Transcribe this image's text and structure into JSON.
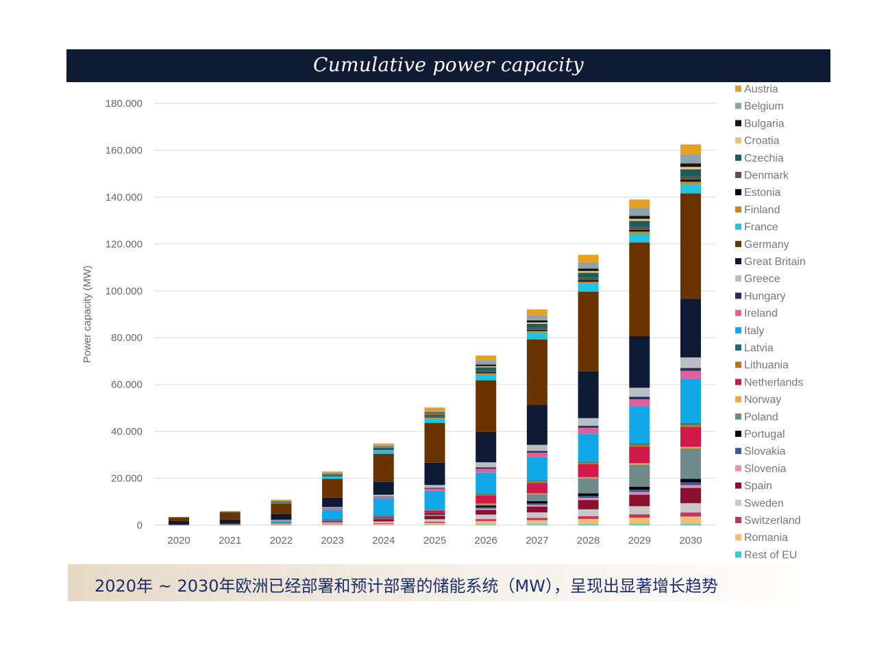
{
  "caption": "2020年 ~ 2030年欧洲已经部署和预计部署的储能系统（MW），呈现出显著增长趋势",
  "chart_data": {
    "type": "bar",
    "stacked": true,
    "title": "Cumulative power capacity",
    "xlabel": "",
    "ylabel": "Power capacity (MW)",
    "ylim": [
      0,
      180000
    ],
    "yticks": [
      0,
      20000,
      40000,
      60000,
      80000,
      100000,
      120000,
      140000,
      160000,
      180000
    ],
    "ytick_labels": [
      "0",
      "20.000",
      "40.000",
      "60.000",
      "80.000",
      "100.000",
      "120.000",
      "140.000",
      "160.000",
      "180.000"
    ],
    "grid": true,
    "legend_position": "right",
    "categories": [
      "2020",
      "2021",
      "2022",
      "2023",
      "2024",
      "2025",
      "2026",
      "2027",
      "2028",
      "2029",
      "2030"
    ],
    "series": [
      {
        "name": "Austria",
        "color": "#e8a020",
        "values": [
          40,
          100,
          340,
          560,
          730,
          1160,
          2060,
          2490,
          3100,
          3700,
          4300
        ]
      },
      {
        "name": "Belgium",
        "color": "#8fa3a8",
        "values": [
          40,
          90,
          300,
          490,
          650,
          1030,
          1820,
          2200,
          2740,
          3270,
          3800
        ]
      },
      {
        "name": "Bulgaria",
        "color": "#151515",
        "values": [
          20,
          40,
          120,
          200,
          260,
          410,
          720,
          870,
          1080,
          1290,
          1500
        ]
      },
      {
        "name": "Croatia",
        "color": "#f2c27a",
        "values": [
          10,
          20,
          80,
          130,
          170,
          270,
          480,
          580,
          720,
          860,
          1000
        ]
      },
      {
        "name": "Czechia",
        "color": "#1a5e5a",
        "values": [
          30,
          70,
          240,
          390,
          510,
          810,
          1440,
          1740,
          2160,
          2580,
          3000
        ]
      },
      {
        "name": "Denmark",
        "color": "#555555",
        "values": [
          20,
          40,
          120,
          200,
          260,
          410,
          720,
          870,
          1080,
          1290,
          1500
        ]
      },
      {
        "name": "Estonia",
        "color": "#0a0a0a",
        "values": [
          10,
          20,
          60,
          100,
          140,
          220,
          380,
          460,
          580,
          690,
          800
        ]
      },
      {
        "name": "Finland",
        "color": "#c8861c",
        "values": [
          10,
          20,
          80,
          130,
          170,
          270,
          480,
          580,
          720,
          860,
          1000
        ]
      },
      {
        "name": "France",
        "color": "#22c3e0",
        "values": [
          100,
          200,
          300,
          1000,
          1500,
          2000,
          2500,
          3000,
          3500,
          3800,
          4000
        ]
      },
      {
        "name": "Germany",
        "color": "#6b3300",
        "values": [
          1500,
          3000,
          4500,
          8000,
          12000,
          17000,
          22000,
          28000,
          34000,
          40000,
          45000
        ]
      },
      {
        "name": "Great Britain",
        "color": "#0e1a33",
        "values": [
          1500,
          1800,
          2500,
          4000,
          5500,
          9500,
          13000,
          17000,
          20000,
          22000,
          25000
        ]
      },
      {
        "name": "Greece",
        "color": "#b8bec4",
        "values": [
          50,
          110,
          360,
          590,
          770,
          1220,
          2160,
          2610,
          3240,
          3870,
          4500
        ]
      },
      {
        "name": "Hungary",
        "color": "#2a2c55",
        "values": [
          10,
          30,
          100,
          160,
          200,
          320,
          580,
          700,
          860,
          1030,
          1200
        ]
      },
      {
        "name": "Ireland",
        "color": "#e0609a",
        "values": [
          40,
          80,
          280,
          460,
          600,
          950,
          1680,
          2030,
          2520,
          3010,
          3500
        ]
      },
      {
        "name": "Italy",
        "color": "#11a8e8",
        "values": [
          0,
          0,
          300,
          4000,
          7500,
          8000,
          9000,
          10000,
          12000,
          16000,
          19000
        ]
      },
      {
        "name": "Latvia",
        "color": "#147080",
        "values": [
          10,
          10,
          40,
          70,
          90,
          140,
          240,
          290,
          360,
          430,
          500
        ]
      },
      {
        "name": "Lithuania",
        "color": "#b07820",
        "values": [
          10,
          20,
          80,
          130,
          170,
          270,
          480,
          580,
          720,
          860,
          1000
        ]
      },
      {
        "name": "Netherlands",
        "color": "#d0184a",
        "values": [
          0,
          0,
          0,
          0,
          300,
          1000,
          3500,
          4500,
          5500,
          7000,
          8500
        ]
      },
      {
        "name": "Norway",
        "color": "#e8b030",
        "values": [
          10,
          10,
          50,
          80,
          100,
          160,
          290,
          350,
          430,
          520,
          600
        ]
      },
      {
        "name": "Poland",
        "color": "#6e8a8a",
        "values": [
          0,
          0,
          0,
          0,
          0,
          0,
          500,
          3000,
          6500,
          9500,
          13000
        ]
      },
      {
        "name": "Portugal",
        "color": "#000000",
        "values": [
          20,
          40,
          120,
          200,
          260,
          410,
          720,
          870,
          1080,
          1290,
          1500
        ]
      },
      {
        "name": "Slovakia",
        "color": "#3d5a9a",
        "values": [
          10,
          30,
          100,
          160,
          200,
          320,
          580,
          700,
          860,
          1030,
          1200
        ]
      },
      {
        "name": "Slovenia",
        "color": "#e890b0",
        "values": [
          10,
          30,
          100,
          160,
          200,
          320,
          580,
          700,
          860,
          1030,
          1200
        ]
      },
      {
        "name": "Spain",
        "color": "#8a1030",
        "values": [
          0,
          0,
          0,
          500,
          1000,
          1500,
          2000,
          2500,
          4000,
          5000,
          6500
        ]
      },
      {
        "name": "Sweden",
        "color": "#c8c8c8",
        "values": [
          40,
          100,
          320,
          520,
          680,
          1080,
          1920,
          2320,
          2880,
          3440,
          4000
        ]
      },
      {
        "name": "Switzerland",
        "color": "#c83060",
        "values": [
          20,
          40,
          140,
          220,
          290,
          460,
          820,
          990,
          1220,
          1460,
          1700
        ]
      },
      {
        "name": "Romania",
        "color": "#f0c070",
        "values": [
          30,
          80,
          260,
          420,
          540,
          860,
          1540,
          1860,
          2300,
          2750,
          3200
        ]
      },
      {
        "name": "Rest of EU",
        "color": "#30c8e0",
        "values": [
          10,
          10,
          40,
          70,
          90,
          140,
          240,
          290,
          360,
          430,
          500
        ]
      }
    ]
  }
}
